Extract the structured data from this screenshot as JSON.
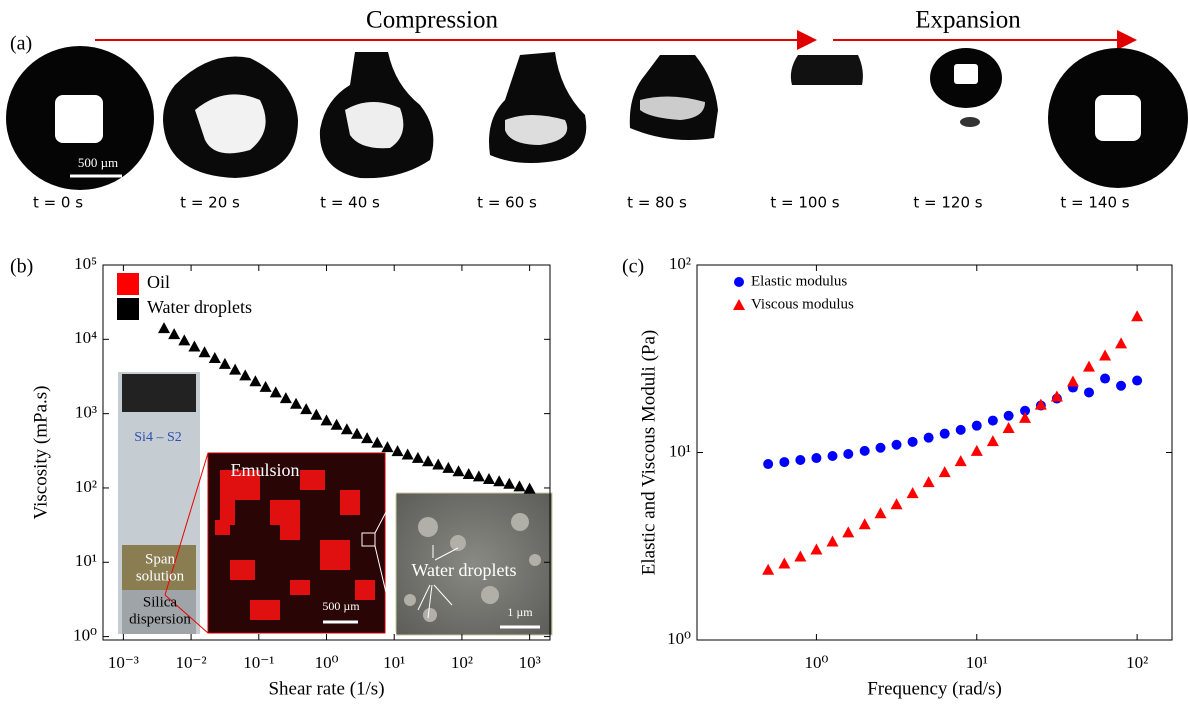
{
  "panel_a": {
    "label": "(a)",
    "phases": [
      "Compression",
      "Expansion"
    ],
    "scale_bar": "500 µm",
    "times": [
      "t = 0 s",
      "t = 20 s",
      "t = 40 s",
      "t = 60 s",
      "t = 80 s",
      "t = 100 s",
      "t = 120 s",
      "t = 140 s"
    ]
  },
  "chart_data": [
    {
      "type": "scatter",
      "panel_label": "(b)",
      "xlabel": "Shear rate (1/s)",
      "ylabel": "Viscosity (mPa.s)",
      "xscale": "log",
      "yscale": "log",
      "xlim": [
        0.0005,
        2000
      ],
      "ylim": [
        0.9,
        100000
      ],
      "xticks": [
        {
          "value": 0.001,
          "label": "10⁻³"
        },
        {
          "value": 0.01,
          "label": "10⁻²"
        },
        {
          "value": 0.1,
          "label": "10⁻¹"
        },
        {
          "value": 1,
          "label": "10⁰"
        },
        {
          "value": 10,
          "label": "10¹"
        },
        {
          "value": 100,
          "label": "10²"
        },
        {
          "value": 1000,
          "label": "10³"
        }
      ],
      "yticks": [
        {
          "value": 1,
          "label": "10⁰"
        },
        {
          "value": 10,
          "label": "10¹"
        },
        {
          "value": 100,
          "label": "10²"
        },
        {
          "value": 1000,
          "label": "10³"
        },
        {
          "value": 10000,
          "label": "10⁴"
        },
        {
          "value": 100000,
          "label": "10⁵"
        }
      ],
      "legend": [
        {
          "name": "Oil",
          "color": "#ff0000"
        },
        {
          "name": "Water droplets",
          "color": "#000000"
        }
      ],
      "x": [
        0.00398,
        0.00562,
        0.00794,
        0.0112,
        0.0158,
        0.0224,
        0.0316,
        0.0447,
        0.0631,
        0.0891,
        0.126,
        0.178,
        0.251,
        0.355,
        0.501,
        0.708,
        1,
        1.41,
        2.0,
        2.82,
        3.98,
        5.62,
        7.94,
        11.2,
        15.8,
        22.4,
        31.6,
        44.7,
        63.1,
        89.1,
        126,
        178,
        251,
        355,
        501,
        708,
        1000
      ],
      "series": [
        {
          "color": "#000000",
          "marker": "triangle",
          "values": [
            14125,
            11750,
            9660,
            8020,
            6700,
            5600,
            4680,
            3910,
            3270,
            2730,
            2290,
            1930,
            1620,
            1360,
            1150,
            966,
            813,
            708,
            617,
            537,
            468,
            407,
            355,
            313,
            282,
            254,
            229,
            207,
            186,
            168,
            154,
            143,
            132,
            123,
            114,
            105,
            98
          ]
        }
      ],
      "annotations": {
        "vial": "Si4 – S2",
        "span": [
          "Span",
          "solution"
        ],
        "silica": [
          "Silica",
          "dispersion"
        ],
        "emulsion": "Emulsion",
        "emulsion_scale": "500 µm",
        "droplets": "Water droplets",
        "sem_scale": "1 µm"
      }
    },
    {
      "type": "scatter",
      "panel_label": "(c)",
      "xlabel": "Frequency (rad/s)",
      "ylabel": "Elastic and Viscous Moduli (Pa)",
      "xscale": "log",
      "yscale": "log",
      "xlim": [
        0.18,
        165
      ],
      "ylim": [
        1,
        100
      ],
      "xticks": [
        {
          "value": 1,
          "label": "10⁰"
        },
        {
          "value": 10,
          "label": "10¹"
        },
        {
          "value": 100,
          "label": "10²"
        }
      ],
      "yticks": [
        {
          "value": 1,
          "label": "10⁰"
        },
        {
          "value": 10,
          "label": "10¹"
        },
        {
          "value": 100,
          "label": "10²"
        }
      ],
      "x": [
        0.5,
        0.631,
        0.794,
        1,
        1.26,
        1.58,
        2,
        2.51,
        3.16,
        3.98,
        5.01,
        6.31,
        7.94,
        10,
        12.6,
        15.8,
        20,
        25.1,
        31.6,
        39.8,
        50.1,
        63.1,
        79.4,
        100
      ],
      "series": [
        {
          "name": "Elastic modulus",
          "color": "#0000ff",
          "marker": "circle",
          "values": [
            8.68,
            8.89,
            9.12,
            9.34,
            9.58,
            9.82,
            10.2,
            10.6,
            11.0,
            11.4,
            12.0,
            12.6,
            13.2,
            13.9,
            14.8,
            15.7,
            16.7,
            17.8,
            19.4,
            22.2,
            20.9,
            24.8,
            22.7,
            24.2
          ]
        },
        {
          "name": "Viscous modulus",
          "color": "#ff0000",
          "marker": "triangle",
          "values": [
            2.37,
            2.56,
            2.79,
            3.04,
            3.35,
            3.75,
            4.14,
            4.74,
            5.3,
            6.07,
            6.95,
            7.86,
            9.0,
            10.2,
            11.5,
            13.5,
            15.3,
            18.0,
            19.9,
            23.9,
            28.7,
            32.9,
            38.2,
            53.3
          ]
        }
      ]
    }
  ]
}
